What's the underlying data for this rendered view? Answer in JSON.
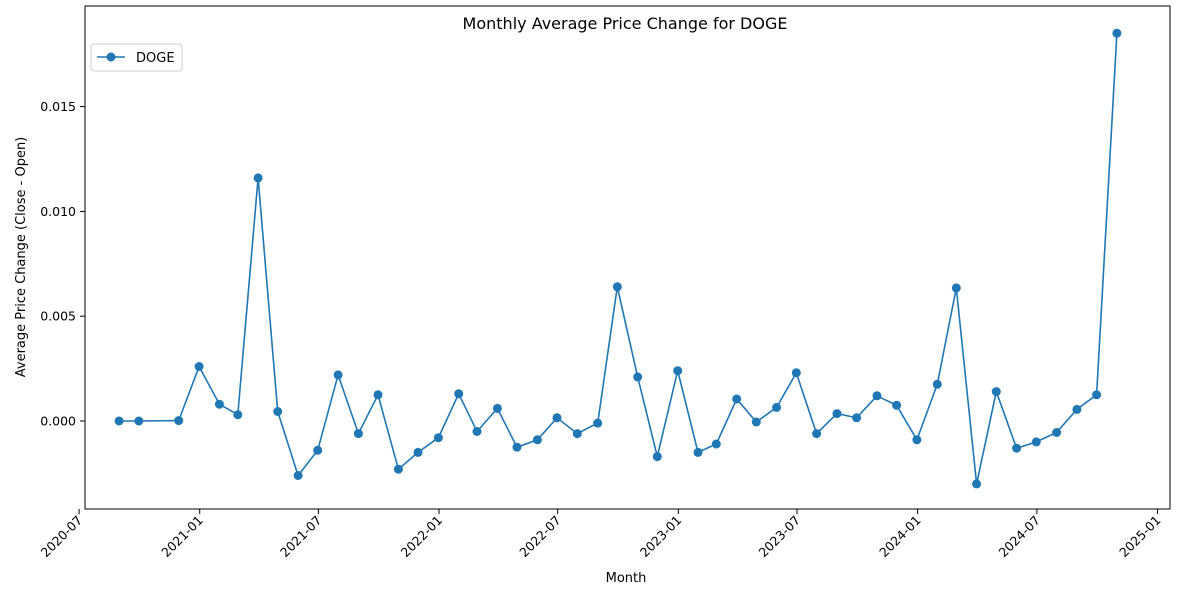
{
  "chart_data": {
    "type": "line",
    "title": "Monthly Average Price Change for DOGE",
    "xlabel": "Month",
    "ylabel": "Average Price Change (Close - Open)",
    "legend_position": "upper-left",
    "grid": false,
    "x_tick_labels": [
      "2020-07",
      "2021-01",
      "2021-07",
      "2022-01",
      "2022-07",
      "2023-01",
      "2023-07",
      "2024-01",
      "2024-07",
      "2025-01"
    ],
    "y_tick_labels": [
      "0.000",
      "0.005",
      "0.010",
      "0.015"
    ],
    "ylim": [
      -0.0042,
      0.0198
    ],
    "xlim": [
      "2020-07-10",
      "2025-01-20"
    ],
    "series": [
      {
        "name": "DOGE",
        "color": "#1f77b4",
        "marker": "circle",
        "x": [
          "2020-08-31",
          "2020-09-30",
          "2020-11-30",
          "2020-12-31",
          "2021-01-31",
          "2021-02-28",
          "2021-03-31",
          "2021-04-30",
          "2021-05-31",
          "2021-06-30",
          "2021-07-31",
          "2021-08-31",
          "2021-09-30",
          "2021-10-31",
          "2021-11-30",
          "2021-12-31",
          "2022-01-31",
          "2022-02-28",
          "2022-03-31",
          "2022-04-30",
          "2022-05-31",
          "2022-06-30",
          "2022-07-31",
          "2022-08-31",
          "2022-09-30",
          "2022-10-31",
          "2022-11-30",
          "2022-12-31",
          "2023-01-31",
          "2023-02-28",
          "2023-03-31",
          "2023-04-30",
          "2023-05-31",
          "2023-06-30",
          "2023-07-31",
          "2023-08-31",
          "2023-09-30",
          "2023-10-31",
          "2023-11-30",
          "2023-12-31",
          "2024-01-31",
          "2024-02-29",
          "2024-03-31",
          "2024-04-30",
          "2024-05-31",
          "2024-06-30",
          "2024-07-31",
          "2024-08-31",
          "2024-09-30",
          "2024-10-31"
        ],
        "values": [
          0.0,
          0.0,
          2e-05,
          0.0026,
          0.0008,
          0.0003,
          0.0116,
          0.00045,
          -0.0026,
          -0.0014,
          0.0022,
          -0.0006,
          0.00125,
          -0.0023,
          -0.0015,
          -0.0008,
          0.0013,
          -0.0005,
          0.0006,
          -0.00125,
          -0.0009,
          0.00015,
          -0.0006,
          -0.0001,
          0.0064,
          0.0021,
          -0.0017,
          0.0024,
          -0.0015,
          -0.0011,
          0.00105,
          -5e-05,
          0.00065,
          0.0023,
          -0.0006,
          0.00035,
          0.00015,
          0.0012,
          0.00075,
          -0.0009,
          0.00175,
          0.00635,
          -0.003,
          0.0014,
          -0.0013,
          -0.001,
          -0.00055,
          0.00055,
          0.00125,
          0.0185
        ]
      }
    ]
  }
}
